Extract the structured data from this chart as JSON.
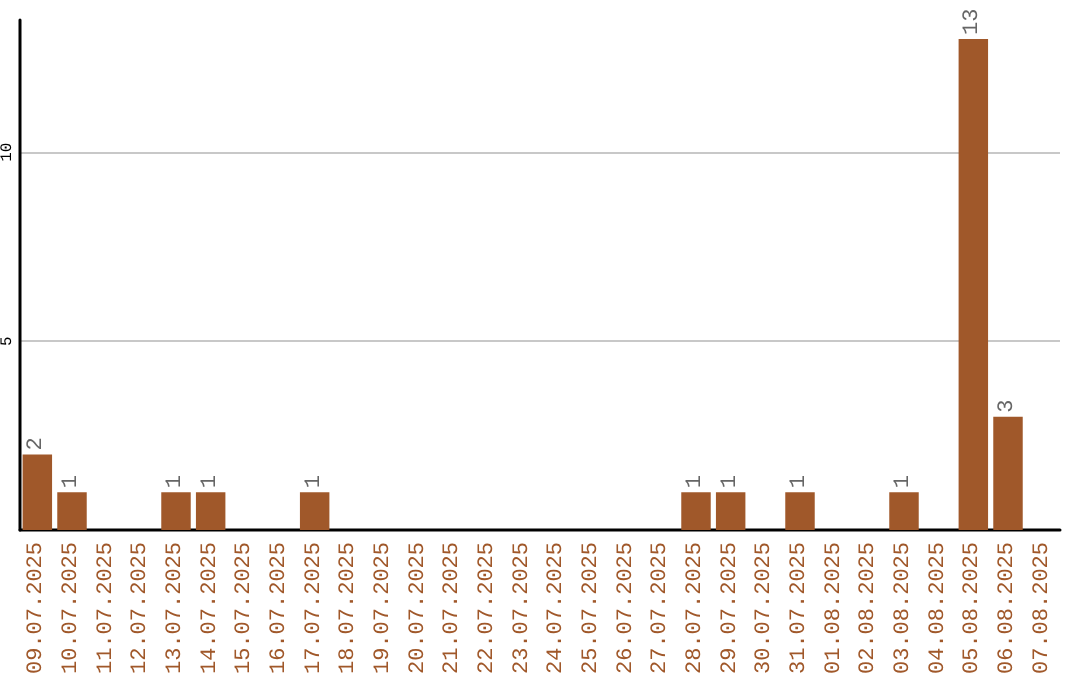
{
  "chart_data": {
    "type": "bar",
    "categories": [
      "09.07.2025",
      "10.07.2025",
      "11.07.2025",
      "12.07.2025",
      "13.07.2025",
      "14.07.2025",
      "15.07.2025",
      "16.07.2025",
      "17.07.2025",
      "18.07.2025",
      "19.07.2025",
      "20.07.2025",
      "21.07.2025",
      "22.07.2025",
      "23.07.2025",
      "24.07.2025",
      "25.07.2025",
      "26.07.2025",
      "27.07.2025",
      "28.07.2025",
      "29.07.2025",
      "30.07.2025",
      "31.07.2025",
      "01.08.2025",
      "02.08.2025",
      "03.08.2025",
      "04.08.2025",
      "05.08.2025",
      "06.08.2025",
      "07.08.2025"
    ],
    "values": [
      2,
      1,
      0,
      0,
      1,
      1,
      0,
      0,
      1,
      0,
      0,
      0,
      0,
      0,
      0,
      0,
      0,
      0,
      0,
      1,
      1,
      0,
      1,
      0,
      0,
      1,
      0,
      13,
      3,
      0
    ],
    "value_labels": [
      "2",
      "1",
      null,
      null,
      "1",
      "1",
      null,
      null,
      "1",
      null,
      null,
      null,
      null,
      null,
      null,
      null,
      null,
      null,
      null,
      "1",
      "1",
      null,
      "1",
      null,
      null,
      "1",
      null,
      "13",
      "3",
      null
    ],
    "color": "#a0582a",
    "ylim": [
      0,
      13.5
    ],
    "yticks": [
      5,
      10
    ],
    "grid": "y"
  }
}
